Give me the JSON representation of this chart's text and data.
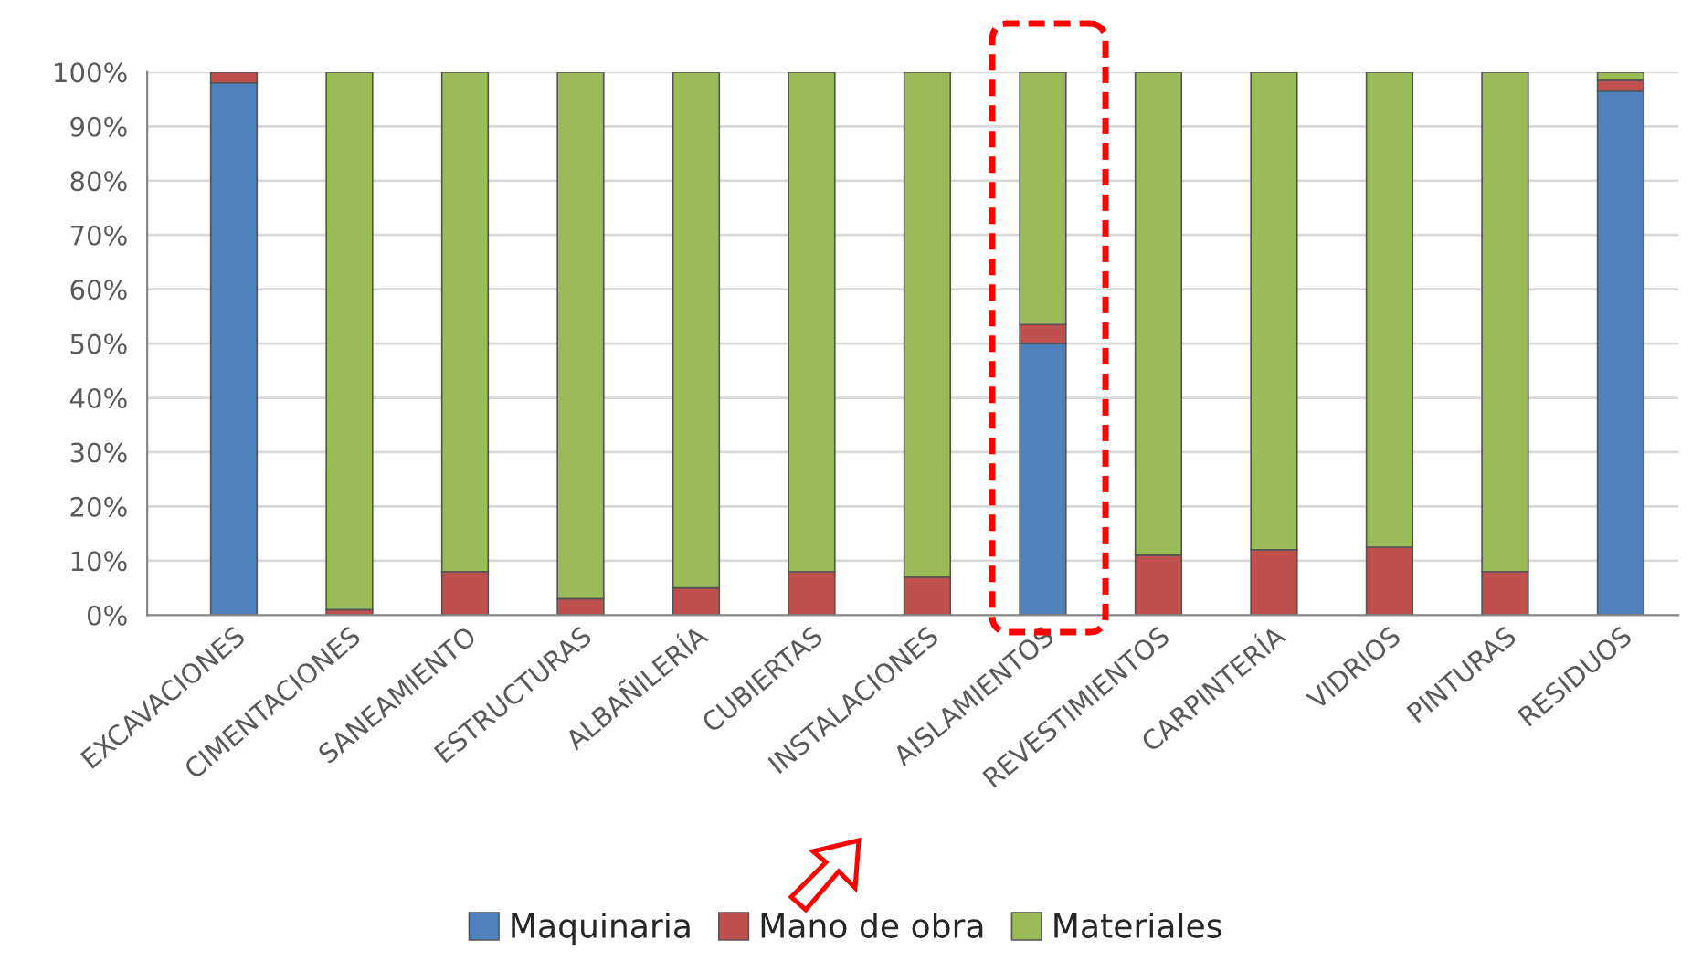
{
  "chart_data": {
    "type": "bar",
    "stacked": true,
    "categories": [
      "EXCAVACIONES",
      "CIMENTACIONES",
      "SANEAMIENTO",
      "ESTRUCTURAS",
      "ALBAÑILERÍA",
      "CUBIERTAS",
      "INSTALACIONES",
      "AISLAMIENTOS",
      "REVESTIMIENTOS",
      "CARPINTERÍA",
      "VIDRIOS",
      "PINTURAS",
      "RESIDUOS"
    ],
    "series": [
      {
        "name": "Maquinaria",
        "color": "#4f81bd",
        "values": [
          98,
          0,
          0,
          0,
          0,
          0,
          0,
          50,
          0,
          0,
          0,
          0,
          96.5
        ]
      },
      {
        "name": "Mano de obra",
        "color": "#c0504d",
        "values": [
          2,
          1,
          8,
          3,
          5,
          8,
          7,
          3.5,
          11,
          12,
          12.5,
          8,
          2
        ]
      },
      {
        "name": "Materiales",
        "color": "#9bbb59",
        "values": [
          0,
          99,
          92,
          97,
          95,
          92,
          93,
          46.5,
          89,
          88,
          87.5,
          92,
          1.5
        ]
      }
    ],
    "ylim": [
      0,
      100
    ],
    "yticks": [
      {
        "value": 0,
        "label": "0%"
      },
      {
        "value": 10,
        "label": "10%"
      },
      {
        "value": 20,
        "label": "20%"
      },
      {
        "value": 30,
        "label": "30%"
      },
      {
        "value": 40,
        "label": "40%"
      },
      {
        "value": 50,
        "label": "50%"
      },
      {
        "value": 60,
        "label": "60%"
      },
      {
        "value": 70,
        "label": "70%"
      },
      {
        "value": 80,
        "label": "80%"
      },
      {
        "value": 90,
        "label": "90%"
      },
      {
        "value": 100,
        "label": "100%"
      }
    ],
    "grid": "y",
    "legend": "bottom"
  }
}
